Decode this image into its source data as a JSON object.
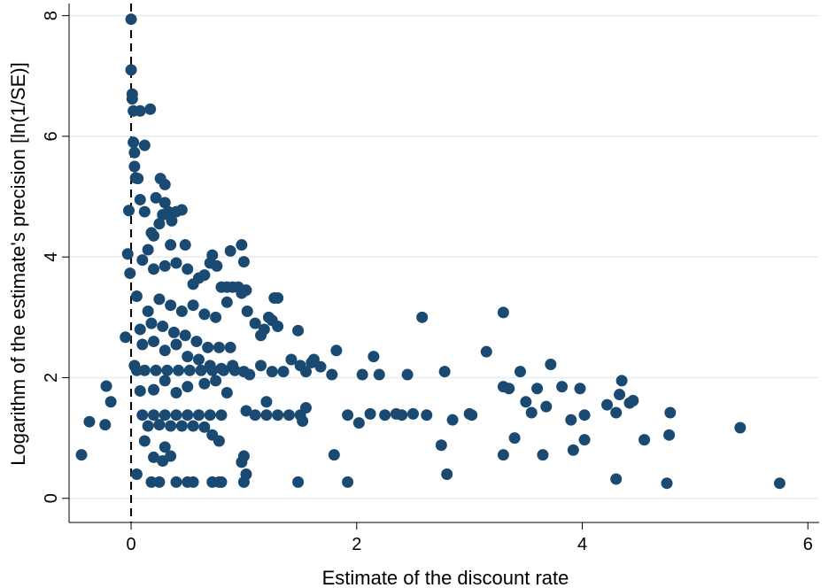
{
  "chart_data": {
    "type": "scatter",
    "xlabel": "Estimate of the discount rate",
    "ylabel": "Logarithm of the estimate's precision [ln(1/SE)]",
    "xlim": [
      -0.55,
      6.1
    ],
    "ylim": [
      -0.4,
      8.2
    ],
    "xticks": [
      0,
      2,
      4,
      6
    ],
    "yticks": [
      0,
      2,
      4,
      6,
      8
    ],
    "grid": "horizontal",
    "reference_line": {
      "x": 0,
      "style": "dashed"
    },
    "marker_color": "#1a4a72",
    "points": [
      [
        -0.44,
        0.72
      ],
      [
        -0.37,
        1.27
      ],
      [
        -0.23,
        1.22
      ],
      [
        -0.22,
        1.86
      ],
      [
        -0.18,
        1.6
      ],
      [
        -0.05,
        2.67
      ],
      [
        -0.03,
        4.05
      ],
      [
        -0.02,
        4.77
      ],
      [
        -0.01,
        3.73
      ],
      [
        0.0,
        7.94
      ],
      [
        0.0,
        7.1
      ],
      [
        0.01,
        6.7
      ],
      [
        0.01,
        6.62
      ],
      [
        0.02,
        6.42
      ],
      [
        0.02,
        5.9
      ],
      [
        0.03,
        5.73
      ],
      [
        0.03,
        5.5
      ],
      [
        0.04,
        5.31
      ],
      [
        0.05,
        0.4
      ],
      [
        0.06,
        5.3
      ],
      [
        0.08,
        6.42
      ],
      [
        0.12,
        5.85
      ],
      [
        0.17,
        6.45
      ],
      [
        0.15,
        4.12
      ],
      [
        0.2,
        4.35
      ],
      [
        0.25,
        4.55
      ],
      [
        0.28,
        4.7
      ],
      [
        0.3,
        4.9
      ],
      [
        0.22,
        4.98
      ],
      [
        0.26,
        5.3
      ],
      [
        0.3,
        5.2
      ],
      [
        0.33,
        4.75
      ],
      [
        0.36,
        4.6
      ],
      [
        0.4,
        4.75
      ],
      [
        0.45,
        4.78
      ],
      [
        0.12,
        4.75
      ],
      [
        0.08,
        4.95
      ],
      [
        0.18,
        4.4
      ],
      [
        0.35,
        4.2
      ],
      [
        0.48,
        4.2
      ],
      [
        0.1,
        3.95
      ],
      [
        0.2,
        3.8
      ],
      [
        0.3,
        3.85
      ],
      [
        0.4,
        3.9
      ],
      [
        0.5,
        3.8
      ],
      [
        0.55,
        3.55
      ],
      [
        0.6,
        3.65
      ],
      [
        0.65,
        3.7
      ],
      [
        0.7,
        3.9
      ],
      [
        0.72,
        4.03
      ],
      [
        0.76,
        3.85
      ],
      [
        0.8,
        3.5
      ],
      [
        0.85,
        3.5
      ],
      [
        0.9,
        3.5
      ],
      [
        0.95,
        3.5
      ],
      [
        0.98,
        3.4
      ],
      [
        0.05,
        3.35
      ],
      [
        0.15,
        3.1
      ],
      [
        0.25,
        3.3
      ],
      [
        0.35,
        3.2
      ],
      [
        0.45,
        3.1
      ],
      [
        0.55,
        3.2
      ],
      [
        0.65,
        3.05
      ],
      [
        0.75,
        3.0
      ],
      [
        0.85,
        3.25
      ],
      [
        0.08,
        2.8
      ],
      [
        0.18,
        2.9
      ],
      [
        0.28,
        2.85
      ],
      [
        0.38,
        2.75
      ],
      [
        0.48,
        2.7
      ],
      [
        0.58,
        2.6
      ],
      [
        0.68,
        2.5
      ],
      [
        0.78,
        2.5
      ],
      [
        0.88,
        2.5
      ],
      [
        0.1,
        2.55
      ],
      [
        0.2,
        2.6
      ],
      [
        0.3,
        2.45
      ],
      [
        0.4,
        2.55
      ],
      [
        0.5,
        2.35
      ],
      [
        0.6,
        2.3
      ],
      [
        0.7,
        2.2
      ],
      [
        0.8,
        2.15
      ],
      [
        0.9,
        2.2
      ],
      [
        0.03,
        2.2
      ],
      [
        0.05,
        2.12
      ],
      [
        0.12,
        2.12
      ],
      [
        0.22,
        2.12
      ],
      [
        0.32,
        2.12
      ],
      [
        0.42,
        2.12
      ],
      [
        0.52,
        2.12
      ],
      [
        0.62,
        2.12
      ],
      [
        0.72,
        2.12
      ],
      [
        0.82,
        2.12
      ],
      [
        0.92,
        2.12
      ],
      [
        1.0,
        2.1
      ],
      [
        1.05,
        2.05
      ],
      [
        0.08,
        1.78
      ],
      [
        0.2,
        1.8
      ],
      [
        0.3,
        1.95
      ],
      [
        0.4,
        1.75
      ],
      [
        0.5,
        1.85
      ],
      [
        0.65,
        1.9
      ],
      [
        0.75,
        1.95
      ],
      [
        0.85,
        1.75
      ],
      [
        0.1,
        1.38
      ],
      [
        0.2,
        1.38
      ],
      [
        0.3,
        1.38
      ],
      [
        0.4,
        1.38
      ],
      [
        0.5,
        1.38
      ],
      [
        0.6,
        1.38
      ],
      [
        0.7,
        1.38
      ],
      [
        0.8,
        1.38
      ],
      [
        0.15,
        1.2
      ],
      [
        0.25,
        1.22
      ],
      [
        0.35,
        1.2
      ],
      [
        0.45,
        1.2
      ],
      [
        0.55,
        1.2
      ],
      [
        0.65,
        1.18
      ],
      [
        0.72,
        1.05
      ],
      [
        0.78,
        0.95
      ],
      [
        0.12,
        0.95
      ],
      [
        0.2,
        0.68
      ],
      [
        0.28,
        0.62
      ],
      [
        0.3,
        0.85
      ],
      [
        0.35,
        0.7
      ],
      [
        0.18,
        0.27
      ],
      [
        0.25,
        0.27
      ],
      [
        0.4,
        0.27
      ],
      [
        0.5,
        0.27
      ],
      [
        0.55,
        0.27
      ],
      [
        0.72,
        0.27
      ],
      [
        0.78,
        0.27
      ],
      [
        0.8,
        0.27
      ],
      [
        0.98,
        0.6
      ],
      [
        1.0,
        0.27
      ],
      [
        1.02,
        0.4
      ],
      [
        1.0,
        0.7
      ],
      [
        0.98,
        4.2
      ],
      [
        1.0,
        3.92
      ],
      [
        0.88,
        4.1
      ],
      [
        1.02,
        3.45
      ],
      [
        1.03,
        3.1
      ],
      [
        1.1,
        2.9
      ],
      [
        1.15,
        2.7
      ],
      [
        1.18,
        2.8
      ],
      [
        1.22,
        3.0
      ],
      [
        1.25,
        2.95
      ],
      [
        1.27,
        3.32
      ],
      [
        1.3,
        3.32
      ],
      [
        1.3,
        2.85
      ],
      [
        1.15,
        2.2
      ],
      [
        1.25,
        2.1
      ],
      [
        1.35,
        2.1
      ],
      [
        1.42,
        2.3
      ],
      [
        1.5,
        2.2
      ],
      [
        1.55,
        2.1
      ],
      [
        1.6,
        2.25
      ],
      [
        1.62,
        2.3
      ],
      [
        1.68,
        2.18
      ],
      [
        1.78,
        2.05
      ],
      [
        1.82,
        2.45
      ],
      [
        1.48,
        2.78
      ],
      [
        1.2,
        1.6
      ],
      [
        1.1,
        1.38
      ],
      [
        1.2,
        1.38
      ],
      [
        1.3,
        1.38
      ],
      [
        1.4,
        1.38
      ],
      [
        1.5,
        1.38
      ],
      [
        1.55,
        1.5
      ],
      [
        1.52,
        1.28
      ],
      [
        1.02,
        1.45
      ],
      [
        1.48,
        0.27
      ],
      [
        1.8,
        0.72
      ],
      [
        1.92,
        0.27
      ],
      [
        1.92,
        1.38
      ],
      [
        2.02,
        1.25
      ],
      [
        2.05,
        2.05
      ],
      [
        2.12,
        1.4
      ],
      [
        2.15,
        2.35
      ],
      [
        2.2,
        2.05
      ],
      [
        2.25,
        1.38
      ],
      [
        2.35,
        1.4
      ],
      [
        2.4,
        1.38
      ],
      [
        2.45,
        2.05
      ],
      [
        2.5,
        1.4
      ],
      [
        2.58,
        3.0
      ],
      [
        2.62,
        1.38
      ],
      [
        2.75,
        0.88
      ],
      [
        2.78,
        2.1
      ],
      [
        2.8,
        0.4
      ],
      [
        2.85,
        1.3
      ],
      [
        3.0,
        1.4
      ],
      [
        3.02,
        1.38
      ],
      [
        3.15,
        2.43
      ],
      [
        3.3,
        3.08
      ],
      [
        3.3,
        1.85
      ],
      [
        3.3,
        0.72
      ],
      [
        3.35,
        1.82
      ],
      [
        3.4,
        1.0
      ],
      [
        3.45,
        2.1
      ],
      [
        3.5,
        1.6
      ],
      [
        3.55,
        1.42
      ],
      [
        3.6,
        1.82
      ],
      [
        3.65,
        0.72
      ],
      [
        3.68,
        1.52
      ],
      [
        3.72,
        2.22
      ],
      [
        3.82,
        1.85
      ],
      [
        3.9,
        1.3
      ],
      [
        3.92,
        0.8
      ],
      [
        3.98,
        1.82
      ],
      [
        4.02,
        0.97
      ],
      [
        4.02,
        1.38
      ],
      [
        4.22,
        1.55
      ],
      [
        4.3,
        1.42
      ],
      [
        4.3,
        0.32
      ],
      [
        4.33,
        1.72
      ],
      [
        4.35,
        1.95
      ],
      [
        4.42,
        1.58
      ],
      [
        4.45,
        1.62
      ],
      [
        4.55,
        0.97
      ],
      [
        4.75,
        0.25
      ],
      [
        4.77,
        1.05
      ],
      [
        4.78,
        1.42
      ],
      [
        5.4,
        1.17
      ],
      [
        5.75,
        0.25
      ]
    ]
  }
}
